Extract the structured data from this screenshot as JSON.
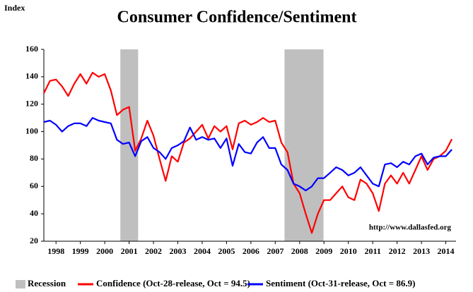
{
  "chart_data": {
    "type": "line",
    "title": "Consumer Confidence/Sentiment",
    "ylabel": "Index",
    "annotation": "http://www.dallasfed.org",
    "xlim": [
      1998,
      2014.92
    ],
    "xticks": [
      {
        "value": 1998.5,
        "label": "1998"
      },
      {
        "value": 1999.5,
        "label": "1999"
      },
      {
        "value": 2000.5,
        "label": "2000"
      },
      {
        "value": 2001.5,
        "label": "2001"
      },
      {
        "value": 2002.5,
        "label": "2002"
      },
      {
        "value": 2003.5,
        "label": "2003"
      },
      {
        "value": 2004.5,
        "label": "2004"
      },
      {
        "value": 2005.5,
        "label": "2005"
      },
      {
        "value": 2006.5,
        "label": "2006"
      },
      {
        "value": 2007.5,
        "label": "2007"
      },
      {
        "value": 2008.5,
        "label": "2008"
      },
      {
        "value": 2009.5,
        "label": "2009"
      },
      {
        "value": 2010.5,
        "label": "2010"
      },
      {
        "value": 2011.5,
        "label": "2011"
      },
      {
        "value": 2012.5,
        "label": "2012"
      },
      {
        "value": 2013.5,
        "label": "2013"
      },
      {
        "value": 2014.5,
        "label": "2014"
      }
    ],
    "ylim": [
      20,
      160
    ],
    "yticks": [
      20,
      40,
      60,
      80,
      100,
      120,
      140,
      160
    ],
    "recession_label": "Recession",
    "recession_color": "#bfbfbf",
    "recessions": [
      {
        "start": 2001.14,
        "end": 2001.87
      },
      {
        "start": 2007.88,
        "end": 2009.48
      }
    ],
    "x": [
      1998.0,
      1998.25,
      1998.5,
      1998.75,
      1999.0,
      1999.25,
      1999.5,
      1999.75,
      2000.0,
      2000.25,
      2000.5,
      2000.75,
      2001.0,
      2001.25,
      2001.5,
      2001.75,
      2002.0,
      2002.25,
      2002.5,
      2002.75,
      2003.0,
      2003.25,
      2003.5,
      2003.75,
      2004.0,
      2004.25,
      2004.5,
      2004.75,
      2005.0,
      2005.25,
      2005.5,
      2005.75,
      2006.0,
      2006.25,
      2006.5,
      2006.75,
      2007.0,
      2007.25,
      2007.5,
      2007.75,
      2008.0,
      2008.25,
      2008.5,
      2008.75,
      2009.0,
      2009.25,
      2009.5,
      2009.75,
      2010.0,
      2010.25,
      2010.5,
      2010.75,
      2011.0,
      2011.25,
      2011.5,
      2011.75,
      2012.0,
      2012.25,
      2012.5,
      2012.75,
      2013.0,
      2013.25,
      2013.5,
      2013.75,
      2014.0,
      2014.25,
      2014.5,
      2014.75
    ],
    "series": [
      {
        "name": "Confidence (Oct-28-release, Oct = 94.5)",
        "color": "#ff0000",
        "values": [
          128,
          137,
          138,
          133,
          126,
          135,
          142,
          135,
          143,
          140,
          142,
          130,
          112,
          116,
          118,
          86,
          95,
          108,
          97,
          80,
          64,
          82,
          78,
          92,
          95,
          100,
          105,
          95,
          104,
          100,
          104,
          87,
          106,
          108,
          105,
          107,
          110,
          107,
          108,
          92,
          85,
          62,
          55,
          40,
          26,
          40,
          50,
          50,
          55,
          60,
          52,
          50,
          65,
          62,
          55,
          42,
          62,
          68,
          62,
          70,
          62,
          72,
          82,
          72,
          80,
          82,
          86,
          94.5
        ]
      },
      {
        "name": "Sentiment (Oct-31-release, Oct = 86.9)",
        "color": "#0000ff",
        "values": [
          107,
          108,
          105,
          100,
          104,
          106,
          106,
          104,
          110,
          108,
          107,
          106,
          94,
          91,
          92,
          82,
          93,
          96,
          88,
          85,
          80,
          88,
          90,
          93,
          103,
          94,
          96,
          94,
          95,
          88,
          95,
          75,
          91,
          85,
          84,
          92,
          96,
          88,
          88,
          76,
          72,
          62,
          60,
          57,
          60,
          66,
          66,
          70,
          74,
          72,
          68,
          70,
          74,
          68,
          62,
          60,
          76,
          77,
          74,
          78,
          76,
          82,
          84,
          76,
          81,
          82,
          82,
          86.9
        ]
      }
    ]
  }
}
